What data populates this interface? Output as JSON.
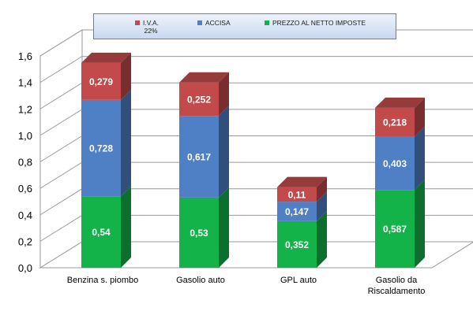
{
  "chart_data": {
    "type": "bar",
    "stacked": true,
    "style": "3d",
    "categories": [
      "Benzina s. piombo",
      "Gasolio auto",
      "GPL auto",
      "Gasolio da\nRiscaldamento"
    ],
    "series": [
      {
        "name": "PREZZO AL NETTO IMPOSTE",
        "values": [
          0.54,
          0.53,
          0.352,
          0.587
        ],
        "labels": [
          "0,54",
          "0,53",
          "0,352",
          "0,587"
        ],
        "color": "#14b34a"
      },
      {
        "name": "ACCISA",
        "values": [
          0.728,
          0.617,
          0.147,
          0.403
        ],
        "labels": [
          "0,728",
          "0,617",
          "0,147",
          "0,403"
        ],
        "color": "#4f7fc4"
      },
      {
        "name": "I.V.A.\n22%",
        "values": [
          0.279,
          0.252,
          0.11,
          0.218
        ],
        "labels": [
          "0,279",
          "0,252",
          "0,11",
          "0,218"
        ],
        "color": "#c24a4a"
      }
    ],
    "legend_order": [
      2,
      1,
      0
    ],
    "legend_position": "top",
    "ylim": [
      0,
      1.6
    ],
    "yticks": [
      "0,0",
      "0,2",
      "0,4",
      "0,6",
      "0,8",
      "1,0",
      "1,2",
      "1,4",
      "1,6"
    ],
    "grid": true,
    "title": "",
    "xlabel": "",
    "ylabel": ""
  }
}
